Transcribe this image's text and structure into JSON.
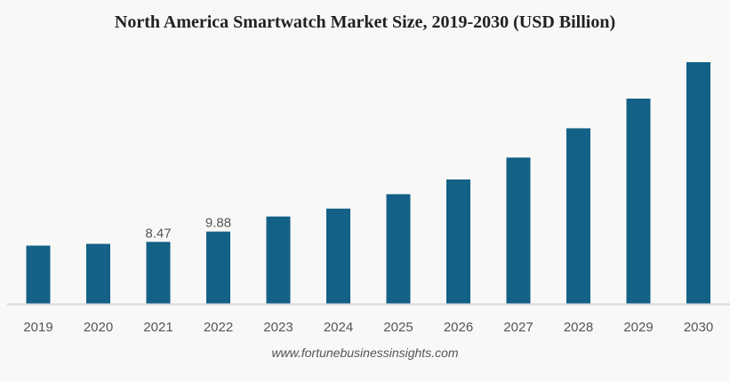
{
  "chart_data": {
    "type": "bar",
    "title": "North America Smartwatch Market Size, 2019-2030 (USD Billion)",
    "xlabel": "",
    "ylabel": "",
    "categories": [
      "2019",
      "2020",
      "2021",
      "2022",
      "2023",
      "2024",
      "2025",
      "2026",
      "2027",
      "2028",
      "2029",
      "2030"
    ],
    "values": [
      7.96,
      8.2,
      8.47,
      9.88,
      11.94,
      13.02,
      14.99,
      17.0,
      20.0,
      24.0,
      28.06,
      33.04
    ],
    "data_labels": {
      "2021": "8.47",
      "2022": "9.88"
    },
    "ylim": [
      0,
      33.04
    ],
    "grid": false,
    "bar_color": "#136187",
    "source": "www.fortunebusinessinsights.com"
  }
}
